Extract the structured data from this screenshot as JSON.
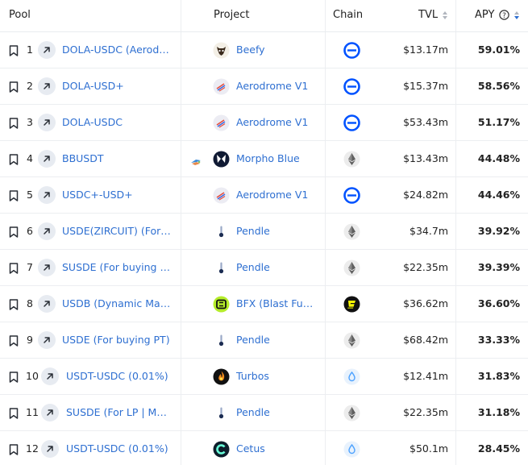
{
  "header": {
    "pool": "Pool",
    "project": "Project",
    "chain": "Chain",
    "tvl": "TVL",
    "apy": "APY"
  },
  "rows": [
    {
      "num": "1",
      "pool": "DOLA-USDC (Aerodrome)",
      "project": "Beefy",
      "project_icon": "beefy-icon",
      "chain": "base",
      "tvl": "$13.17m",
      "apy": "59.01%"
    },
    {
      "num": "2",
      "pool": "DOLA-USD+",
      "project": "Aerodrome V1",
      "project_icon": "aerodrome-icon",
      "chain": "base",
      "tvl": "$15.37m",
      "apy": "58.56%"
    },
    {
      "num": "3",
      "pool": "DOLA-USDC",
      "project": "Aerodrome V1",
      "project_icon": "aerodrome-icon",
      "chain": "base",
      "tvl": "$53.43m",
      "apy": "51.17%"
    },
    {
      "num": "4",
      "pool": "BBUSDT",
      "project": "Morpho Blue",
      "project_icon": "morpho-icon",
      "chain": "ethereum",
      "tvl": "$13.43m",
      "apy": "44.48%",
      "extra_icon": true
    },
    {
      "num": "5",
      "pool": "USDC+-USD+",
      "project": "Aerodrome V1",
      "project_icon": "aerodrome-icon",
      "chain": "base",
      "tvl": "$24.82m",
      "apy": "44.46%"
    },
    {
      "num": "6",
      "pool": "USDE(ZIRCUIT) (For buying PT)",
      "project": "Pendle",
      "project_icon": "pendle-icon",
      "chain": "ethereum",
      "tvl": "$34.7m",
      "apy": "39.92%"
    },
    {
      "num": "7",
      "pool": "SUSDE (For buying PT)",
      "project": "Pendle",
      "project_icon": "pendle-icon",
      "chain": "ethereum",
      "tvl": "$22.35m",
      "apy": "39.39%"
    },
    {
      "num": "8",
      "pool": "USDB (Dynamic Market)",
      "project": "BFX (Blast Futures)",
      "project_icon": "bfx-icon",
      "chain": "blast",
      "tvl": "$36.62m",
      "apy": "36.60%"
    },
    {
      "num": "9",
      "pool": "USDE (For buying PT)",
      "project": "Pendle",
      "project_icon": "pendle-icon",
      "chain": "ethereum",
      "tvl": "$68.42m",
      "apy": "33.33%"
    },
    {
      "num": "10",
      "pool": "USDT-USDC (0.01%)",
      "project": "Turbos",
      "project_icon": "turbos-icon",
      "chain": "sui",
      "tvl": "$12.41m",
      "apy": "31.83%"
    },
    {
      "num": "11",
      "pool": "SUSDE (For LP | Maturity)",
      "project": "Pendle",
      "project_icon": "pendle-icon",
      "chain": "ethereum",
      "tvl": "$22.35m",
      "apy": "31.18%"
    },
    {
      "num": "12",
      "pool": "USDT-USDC (0.01%)",
      "project": "Cetus",
      "project_icon": "cetus-icon",
      "chain": "sui",
      "tvl": "$50.1m",
      "apy": "28.45%"
    }
  ],
  "colors": {
    "link": "#2e6fd1",
    "base_blue": "#0052ff",
    "sui_blue": "#4da2ff"
  }
}
